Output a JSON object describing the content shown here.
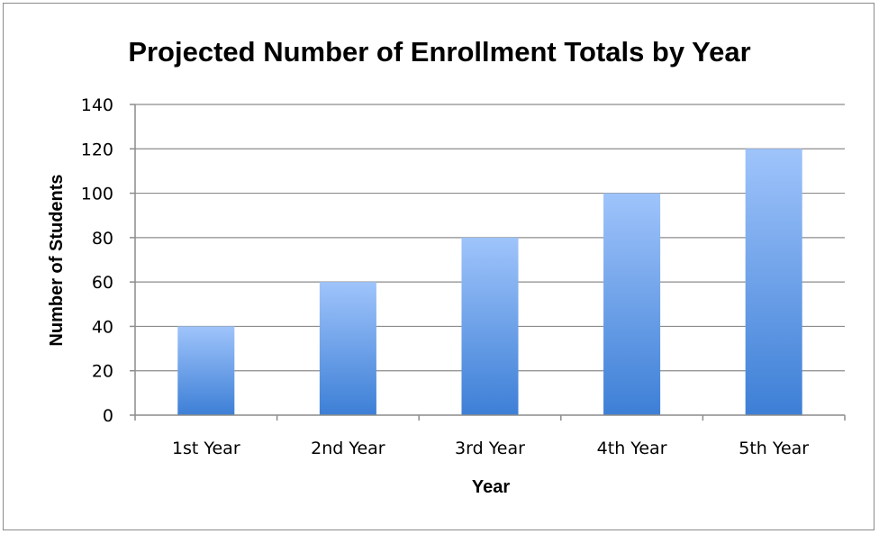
{
  "chart_data": {
    "type": "bar",
    "title": "Projected Number of Enrollment Totals by Year",
    "xlabel": "Year",
    "ylabel": "Number of Students",
    "categories": [
      "1st Year",
      "2nd Year",
      "3rd Year",
      "4th Year",
      "5th Year"
    ],
    "values": [
      40,
      60,
      80,
      100,
      120
    ],
    "ylim": [
      0,
      140
    ],
    "yticks": [
      "0",
      "20",
      "40",
      "60",
      "80",
      "100",
      "120",
      "140"
    ],
    "grid": true,
    "legend": "none",
    "colors": {
      "bar_top": "#9fc4fb",
      "bar_bottom": "#3d7fd6",
      "gridline": "#8c8c8c",
      "frame": "#8a8a8a"
    }
  }
}
